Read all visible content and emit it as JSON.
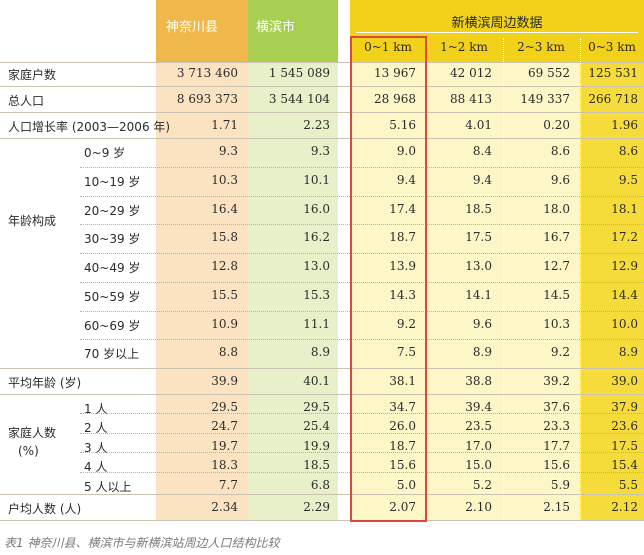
{
  "header": {
    "kanagawa": "神奈川县",
    "yokohama": "横滨市",
    "group_title": "新横滨周边数据",
    "sub_cols": [
      "0~1 km",
      "1~2 km",
      "2~3 km",
      "0~3 km"
    ]
  },
  "rows": {
    "households": {
      "label": "家庭户数",
      "values": [
        "3 713 460",
        "1 545 089",
        "13 967",
        "42 012",
        "69 552",
        "125 531"
      ]
    },
    "population": {
      "label": "总人口",
      "values": [
        "8 693 373",
        "3 544 104",
        "28 968",
        "88 413",
        "149 337",
        "266 718"
      ]
    },
    "growth": {
      "label": "人口增长率 (2003—2006 年)",
      "values": [
        "1.71",
        "2.23",
        "5.16",
        "4.01",
        "0.20",
        "1.96"
      ]
    },
    "avg_age": {
      "label": "平均年龄 (岁)",
      "values": [
        "39.9",
        "40.1",
        "38.1",
        "38.8",
        "39.2",
        "39.0"
      ]
    },
    "avg_household": {
      "label": "户均人数 (人)",
      "values": [
        "2.34",
        "2.29",
        "2.07",
        "2.10",
        "2.15",
        "2.12"
      ]
    }
  },
  "age_group": {
    "label": "年龄构成",
    "items": [
      {
        "label": "0~9 岁",
        "values": [
          "9.3",
          "9.3",
          "9.0",
          "8.4",
          "8.6",
          "8.6"
        ]
      },
      {
        "label": "10~19 岁",
        "values": [
          "10.3",
          "10.1",
          "9.4",
          "9.4",
          "9.6",
          "9.5"
        ]
      },
      {
        "label": "20~29 岁",
        "values": [
          "16.4",
          "16.0",
          "17.4",
          "18.5",
          "18.0",
          "18.1"
        ]
      },
      {
        "label": "30~39 岁",
        "values": [
          "15.8",
          "16.2",
          "18.7",
          "17.5",
          "16.7",
          "17.2"
        ]
      },
      {
        "label": "40~49 岁",
        "values": [
          "12.8",
          "13.0",
          "13.9",
          "13.0",
          "12.7",
          "12.9"
        ]
      },
      {
        "label": "50~59 岁",
        "values": [
          "15.5",
          "15.3",
          "14.3",
          "14.1",
          "14.5",
          "14.4"
        ]
      },
      {
        "label": "60~69 岁",
        "values": [
          "10.9",
          "11.1",
          "9.2",
          "9.6",
          "10.3",
          "10.0"
        ]
      },
      {
        "label": "70 岁以上",
        "values": [
          "8.8",
          "8.9",
          "7.5",
          "8.9",
          "9.2",
          "8.9"
        ]
      }
    ]
  },
  "household_group": {
    "label_line1": "家庭人数",
    "label_line2": "(%)",
    "items": [
      {
        "label": "1 人",
        "values": [
          "29.5",
          "29.5",
          "34.7",
          "39.4",
          "37.6",
          "37.9"
        ]
      },
      {
        "label": "2 人",
        "values": [
          "24.7",
          "25.4",
          "26.0",
          "23.5",
          "23.3",
          "23.6"
        ]
      },
      {
        "label": "3 人",
        "values": [
          "19.7",
          "19.9",
          "18.7",
          "17.0",
          "17.7",
          "17.5"
        ]
      },
      {
        "label": "4 人",
        "values": [
          "18.3",
          "18.5",
          "15.6",
          "15.0",
          "15.6",
          "15.4"
        ]
      },
      {
        "label": "5 人以上",
        "values": [
          "7.7",
          "6.8",
          "5.0",
          "5.2",
          "5.9",
          "5.5"
        ]
      }
    ]
  },
  "caption": "表1  神奈川县、横滨市与新横滨站周边人口结构比较",
  "colors": {
    "kanagawa_header": "#f0b84a",
    "kanagawa_body": "#fbe3c2",
    "yokohama_header": "#a8cf52",
    "yokohama_body": "#e8f0c9",
    "shinyoko_header": "#f2d11a",
    "shinyoko_body": "#fdf6c6",
    "total_body": "#f6dc3a",
    "highlight_border": "#d94a3a"
  }
}
